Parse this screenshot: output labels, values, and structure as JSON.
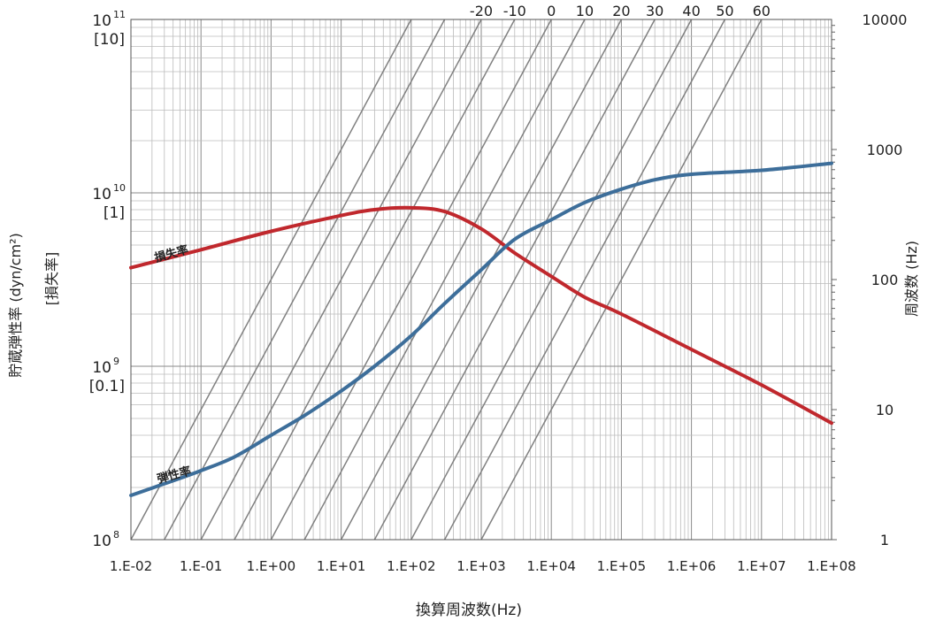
{
  "chart_data": {
    "type": "line",
    "title": "",
    "xlabel": "換算周波数(Hz)",
    "ylabel_left_line1": "貯蔵弾性率 (dyn/cm²)",
    "ylabel_left_line2": "[損失率]",
    "ylabel_right": "周波数 (Hz)",
    "x_scale": "log",
    "xlim": [
      0.01,
      100000000
    ],
    "x_tick_labels": [
      "1.E-02",
      "1.E-01",
      "1.E+00",
      "1.E+01",
      "1.E+02",
      "1.E+03",
      "1.E+04",
      "1.E+05",
      "1.E+06",
      "1.E+07",
      "1.E+08"
    ],
    "y_left_scale": "log",
    "ylim_left": [
      100000000,
      100000000000
    ],
    "y_left_ticks": [
      {
        "value": 100000000,
        "base": "10",
        "exp": "8",
        "bracket": ""
      },
      {
        "value": 1000000000,
        "base": "10",
        "exp": "9",
        "bracket": "[0.1]"
      },
      {
        "value": 10000000000,
        "base": "10",
        "exp": "10",
        "bracket": "[1]"
      },
      {
        "value": 100000000000,
        "base": "10",
        "exp": "11",
        "bracket": "[10]"
      }
    ],
    "loss_factor_scale": "log",
    "loss_factor_lim": [
      0.01,
      10
    ],
    "y_right_scale": "log",
    "ylim_right": [
      1,
      10000
    ],
    "y_right_tick_labels": [
      "1",
      "10",
      "100",
      "1000",
      "10000"
    ],
    "grid": true,
    "isotherms": {
      "labels": [
        "60",
        "50",
        "40",
        "30",
        "20",
        "10",
        "0",
        "-10",
        "-20"
      ],
      "reduced_freq_at_1Hz": [
        1000,
        300,
        100,
        30,
        10,
        3,
        1,
        0.3,
        0.1,
        0.03,
        0.01
      ]
    },
    "series": [
      {
        "name": "損失率",
        "color": "#c0282d",
        "axis": "loss_factor",
        "x": [
          0.01,
          0.1,
          1,
          10,
          30,
          100,
          300,
          1000,
          3000,
          10000,
          30000,
          100000,
          1000000,
          10000000,
          100000000
        ],
        "values": [
          0.37,
          0.47,
          0.6,
          0.74,
          0.8,
          0.82,
          0.78,
          0.62,
          0.45,
          0.33,
          0.25,
          0.2,
          0.125,
          0.078,
          0.047
        ]
      },
      {
        "name": "弾性率",
        "color": "#3d6e9a",
        "axis": "left",
        "x": [
          0.01,
          0.03,
          0.1,
          0.3,
          1,
          3,
          10,
          30,
          100,
          300,
          1000,
          3000,
          10000,
          30000,
          100000,
          300000,
          1000000,
          10000000,
          100000000
        ],
        "values": [
          180000000,
          210000000,
          250000000,
          300000000,
          400000000,
          520000000,
          720000000,
          1000000000,
          1500000000,
          2300000000,
          3600000000,
          5400000000,
          7000000000,
          8800000000,
          10500000000,
          11900000000,
          12800000000,
          13500000000,
          14800000000
        ]
      }
    ]
  }
}
